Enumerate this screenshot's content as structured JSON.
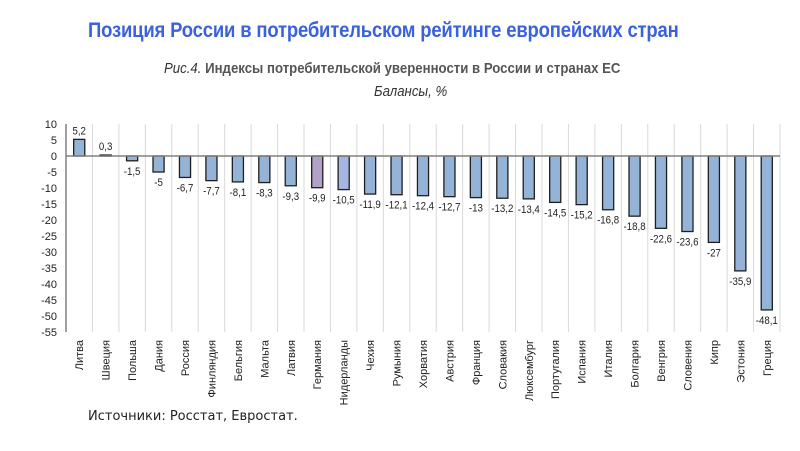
{
  "header": {
    "headline": "Позиция России в потребительском рейтинге европейских стран",
    "figure_label": "Рис.4.",
    "figure_title": "Индексы потребительской уверенности в России и странах ЕС",
    "units": "Балансы, %"
  },
  "footer": {
    "source": "Источники: Росстат, Евростат."
  },
  "colors": {
    "bar_default": "#95b3d7",
    "bar_germany": "#b3a2c7",
    "bar_netherlands": "#a5b6e3",
    "bar_outline": "#1f1f1f",
    "grid": "#d9d9d9",
    "axis": "#808080",
    "headline": "#3a62dc"
  },
  "chart_data": {
    "type": "bar",
    "title": "Индексы потребительской уверенности в России и странах ЕС",
    "subtitle": "Балансы, %",
    "xlabel": "",
    "ylabel": "",
    "ylim": [
      -55,
      10
    ],
    "yticks": [
      10,
      5,
      0,
      -5,
      -10,
      -15,
      -20,
      -25,
      -30,
      -35,
      -40,
      -45,
      -50,
      -55
    ],
    "grid": "vertical",
    "legend": "none",
    "categories": [
      "Литва",
      "Швеция",
      "Польша",
      "Дания",
      "Россия",
      "Финляндия",
      "Бельгия",
      "Мальта",
      "Латвия",
      "Германия",
      "Нидерланды",
      "Чехия",
      "Румыния",
      "Хорватия",
      "Австрия",
      "Франция",
      "Словакия",
      "Люксембург",
      "Португалия",
      "Испания",
      "Италия",
      "Болгария",
      "Венгрия",
      "Словения",
      "Кипр",
      "Эстония",
      "Греция"
    ],
    "values": [
      5.2,
      0.3,
      -1.5,
      -5,
      -6.7,
      -7.7,
      -8.1,
      -8.3,
      -9.3,
      -9.9,
      -10.5,
      -11.9,
      -12.1,
      -12.4,
      -12.7,
      -13,
      -13.2,
      -13.4,
      -14.5,
      -15.2,
      -16.8,
      -18.8,
      -22.6,
      -23.6,
      -27,
      -35.9,
      -48.1
    ],
    "value_labels": [
      "5,2",
      "0,3",
      "-1,5",
      "-5",
      "-6,7",
      "-7,7",
      "-8,1",
      "-8,3",
      "-9,3",
      "-9,9",
      "-10,5",
      "-11,9",
      "-12,1",
      "-12,4",
      "-12,7",
      "-13",
      "-13,2",
      "-13,4",
      "-14,5",
      "-15,2",
      "-16,8",
      "-18,8",
      "-22,6",
      "-23,6",
      "-27",
      "-35,9",
      "-48,1"
    ],
    "highlight": {
      "Германия": "bar_germany",
      "Нидерланды": "bar_netherlands"
    }
  }
}
